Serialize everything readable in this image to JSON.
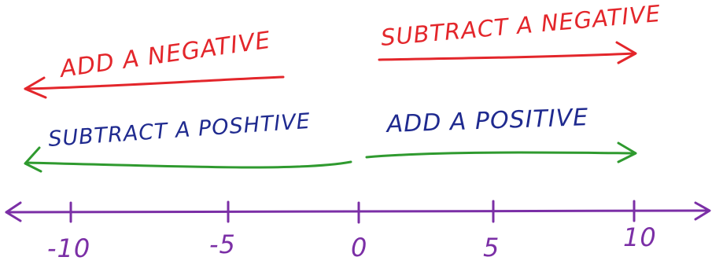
{
  "colors": {
    "red": "#e3262b",
    "blue": "#1f2a8f",
    "green": "#2f9a2f",
    "purple": "#7b2fa6"
  },
  "labels": {
    "add_negative": "ADD A NEGATIVE",
    "subtract_negative": "SUBTRACT A NEGATIVE",
    "subtract_positive": "SUBTRACT A POSHTIVE",
    "add_positive": "ADD A POSITIVE"
  },
  "number_line": {
    "ticks": [
      "-10",
      "-5",
      "0",
      "5",
      "10"
    ]
  }
}
